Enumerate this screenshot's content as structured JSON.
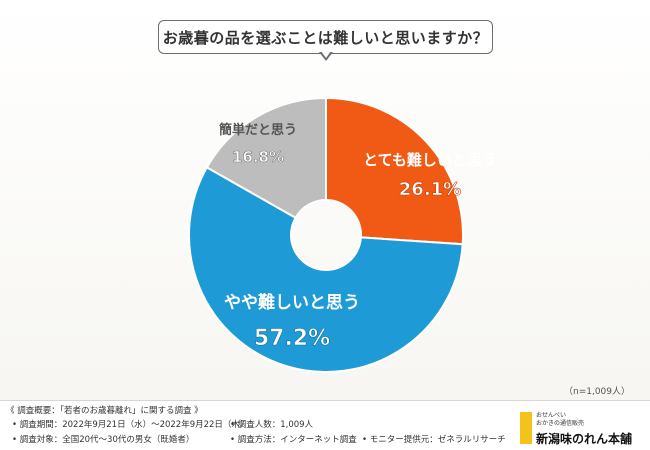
{
  "question": "お歳暮の品を選ぶことは難しいと思いますか？",
  "sample_size": "（n=1,009人）",
  "chart_data": {
    "type": "pie",
    "donut": true,
    "slices": [
      {
        "label": "とても難しいと思う",
        "value": 26.1,
        "value_text": "26.1%",
        "color": "#f05a14",
        "text_color": "#f05a14",
        "value_color": "#ffffff"
      },
      {
        "label": "やや難しいと思う",
        "value": 57.2,
        "value_text": "57.2%",
        "color": "#1e9ad6",
        "text_color": "#ffffff",
        "value_color": "#ffffff"
      },
      {
        "label": "簡単だと思う",
        "value": 16.8,
        "value_text": "16.8%",
        "color": "#bdbdbd",
        "text_color": "#555555",
        "value_color": "#ffffff"
      }
    ]
  },
  "footer": {
    "overview": "《 調査概要：「若者のお歳暮離れ」に関する調査 》",
    "period": "• 調査期間：2022年9月21日（水）〜2022年9月22日（木）",
    "respondents": "• 調査人数：1,009人",
    "target": "• 調査対象：全国20代〜30代の男女（既婚者）",
    "method": "• 調査方法：インターネット調査",
    "provider": "• モニター提供元：ゼネラルリサーチ"
  },
  "logo": {
    "line1": "おせんべい",
    "line2": "おかきの通信販売",
    "name": "新潟味のれん本舗"
  }
}
